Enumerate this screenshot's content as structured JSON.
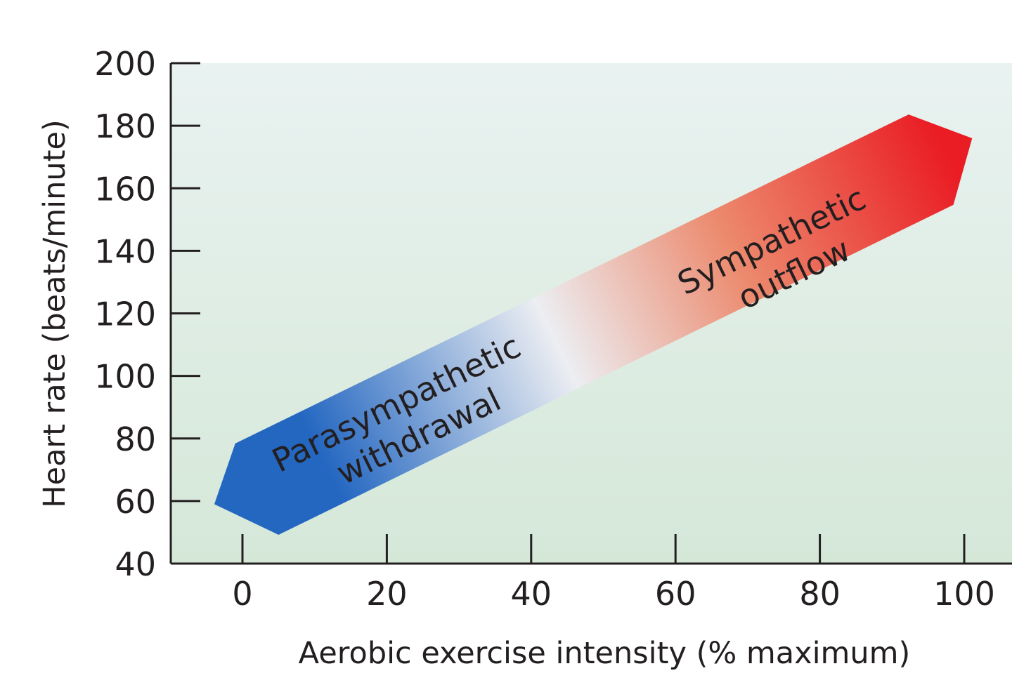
{
  "chart_data": {
    "type": "area",
    "xlabel": "Aerobic exercise intensity (% maximum)",
    "ylabel": "Heart rate (beats/minute)",
    "xlim": [
      -10,
      103
    ],
    "ylim": [
      40,
      200
    ],
    "xticks": [
      "0",
      "20",
      "40",
      "60",
      "80",
      "100"
    ],
    "xtick_values": [
      0,
      20,
      40,
      60,
      80,
      100
    ],
    "yticks": [
      "200",
      "180",
      "160",
      "140",
      "120",
      "100",
      "80",
      "60",
      "40"
    ],
    "ytick_values": [
      200,
      180,
      160,
      140,
      120,
      100,
      80,
      60,
      40
    ],
    "grid": false,
    "arrow_polygon": [
      {
        "x": -3.9,
        "y": 59
      },
      {
        "x": -1,
        "y": 78.4
      },
      {
        "x": 92.3,
        "y": 183.6
      },
      {
        "x": 101.1,
        "y": 176
      },
      {
        "x": 98.5,
        "y": 154.7
      },
      {
        "x": 5,
        "y": 49.2
      }
    ],
    "annotations": [
      {
        "lines": [
          "Parasympathetic",
          "withdrawal"
        ],
        "x": 22,
        "y": 88
      },
      {
        "lines": [
          "Sympathetic",
          "outflow"
        ],
        "x": 74,
        "y": 140
      }
    ],
    "colors": {
      "low": "#2467c1",
      "mid": "#eceef2",
      "high": "#ea1c24",
      "background_top": "#e9f2f1",
      "background_bottom": "#d5e8d8",
      "axis": "#231f20"
    }
  }
}
